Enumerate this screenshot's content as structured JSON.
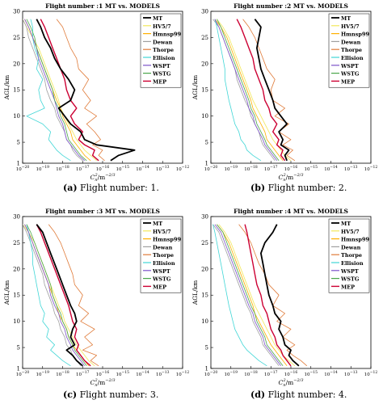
{
  "figure": {
    "captions": [
      {
        "tag": "(a)",
        "text": "Flight number: 1."
      },
      {
        "tag": "(b)",
        "text": "Flight number: 2."
      },
      {
        "tag": "(c)",
        "text": "Flight number: 3."
      },
      {
        "tag": "(d)",
        "text": "Flight number: 4."
      }
    ]
  },
  "series_styles": [
    {
      "name": "MT",
      "color": "#000000",
      "width": 1.8
    },
    {
      "name": "HV5/7",
      "color": "#f2e85a",
      "width": 0.8
    },
    {
      "name": "Hmnsp99",
      "color": "#ffb000",
      "width": 0.8
    },
    {
      "name": "Dewan",
      "color": "#a0a0a0",
      "width": 0.8
    },
    {
      "name": "Thorpe",
      "color": "#e07b39",
      "width": 0.8
    },
    {
      "name": "Ellision",
      "color": "#3fd6d6",
      "width": 0.8
    },
    {
      "name": "WSPT",
      "color": "#7b52c9",
      "width": 0.8
    },
    {
      "name": "WSTG",
      "color": "#4aa64a",
      "width": 0.8
    },
    {
      "name": "MEP",
      "color": "#cc0033",
      "width": 1.4
    }
  ],
  "chart_data": [
    {
      "type": "line",
      "title": "Flight number :1  MT vs. MODELS",
      "xlabel": "C_n^2/m^-2/3",
      "ylabel": "AGL/km",
      "x_scale": "log",
      "xlim": [
        1e-20,
        1e-12
      ],
      "ylim": [
        1,
        30
      ],
      "x_ticks": [
        "10^-20",
        "10^-19",
        "10^-18",
        "10^-17",
        "10^-16",
        "10^-15",
        "10^-14",
        "10^-13",
        "10^-12"
      ],
      "y_ticks": [
        1,
        5,
        10,
        15,
        20,
        25,
        30
      ],
      "legend_position": "top-right",
      "y": [
        1.5,
        2.5,
        3.5,
        4.5,
        5.5,
        7,
        8.5,
        10,
        11.5,
        13,
        15,
        17,
        19,
        21,
        23,
        25,
        27,
        28.5
      ],
      "series": [
        {
          "name": "MT",
          "x_exp": [
            -15.6,
            -15.2,
            -14.4,
            -16.3,
            -16.9,
            -17.1,
            -17.6,
            -17.9,
            -18.2,
            -17.6,
            -17.4,
            -17.7,
            -18.1,
            -18.4,
            -18.6,
            -18.9,
            -19.1,
            -19.3
          ]
        },
        {
          "name": "HV5/7",
          "x_exp": [
            -16.3,
            -16.6,
            -16.9,
            -17.1,
            -17.3,
            -17.5,
            -17.7,
            -17.9,
            -18.1,
            -18.2,
            -18.4,
            -18.6,
            -18.8,
            -19.0,
            -19.2,
            -19.5,
            -19.8,
            -20.0
          ]
        },
        {
          "name": "Hmnsp99",
          "x_exp": [
            -16.6,
            -16.9,
            -17.1,
            -17.3,
            -17.5,
            -17.6,
            -17.8,
            -18.0,
            -18.1,
            -18.3,
            -18.5,
            -18.7,
            -18.9,
            -19.1,
            -19.3,
            -19.5,
            -19.7,
            -19.9
          ]
        },
        {
          "name": "Dewan",
          "x_exp": [
            -17.0,
            -17.3,
            -17.5,
            -17.6,
            -17.8,
            -17.9,
            -18.1,
            -18.3,
            -18.4,
            -18.6,
            -18.8,
            -18.9,
            -19.1,
            -19.3,
            -19.5,
            -19.7,
            -19.8,
            -20.0
          ]
        },
        {
          "name": "Thorpe",
          "x_exp": [
            -15.9,
            -16.2,
            -16.0,
            -16.5,
            -16.1,
            -16.4,
            -16.8,
            -16.3,
            -16.9,
            -16.6,
            -17.0,
            -16.7,
            -17.2,
            -17.3,
            -17.6,
            -17.8,
            -18.0,
            -18.3
          ]
        },
        {
          "name": "Ellision",
          "x_exp": [
            -17.6,
            -18.0,
            -18.3,
            -18.5,
            -18.7,
            -18.6,
            -19.0,
            -19.8,
            -18.9,
            -19.1,
            -19.2,
            -19.0,
            -19.3,
            -19.2,
            -19.4,
            -19.5,
            -19.5,
            -19.6
          ]
        },
        {
          "name": "WSPT",
          "x_exp": [
            -16.9,
            -17.2,
            -17.4,
            -17.6,
            -17.8,
            -17.9,
            -18.0,
            -18.2,
            -18.3,
            -18.4,
            -18.6,
            -18.8,
            -19.0,
            -19.2,
            -19.3,
            -19.5,
            -19.7,
            -19.9
          ]
        },
        {
          "name": "WSTG",
          "x_exp": [
            -16.8,
            -17.1,
            -17.3,
            -17.5,
            -17.7,
            -17.8,
            -17.9,
            -18.1,
            -18.2,
            -18.4,
            -18.5,
            -18.7,
            -18.9,
            -19.1,
            -19.3,
            -19.4,
            -19.6,
            -19.8
          ]
        },
        {
          "name": "MEP",
          "x_exp": [
            -16.2,
            -16.5,
            -16.4,
            -16.9,
            -17.2,
            -17.0,
            -17.4,
            -17.6,
            -17.3,
            -17.6,
            -17.8,
            -17.9,
            -18.1,
            -18.3,
            -18.5,
            -18.7,
            -18.9,
            -19.1
          ]
        }
      ]
    },
    {
      "type": "line",
      "title": "Flight number :2  MT vs. MODELS",
      "xlabel": "C_n^2/m^-2/3",
      "ylabel": "AGL/km",
      "x_scale": "log",
      "xlim": [
        1e-20,
        1e-12
      ],
      "ylim": [
        1,
        30
      ],
      "x_ticks": [
        "10^-20",
        "10^-19",
        "10^-18",
        "10^-17",
        "10^-16",
        "10^-15",
        "10^-14",
        "10^-13",
        "10^-12"
      ],
      "y_ticks": [
        1,
        5,
        10,
        15,
        20,
        25,
        30
      ],
      "legend_position": "top-right",
      "y": [
        1.5,
        2.5,
        3.5,
        4.5,
        5.5,
        7,
        8.5,
        10,
        11.5,
        13,
        15,
        17,
        19,
        21,
        23,
        25,
        27,
        28.5
      ],
      "series": [
        {
          "name": "MT",
          "x_exp": [
            -16.2,
            -16.3,
            -16.1,
            -16.5,
            -16.4,
            -16.6,
            -16.2,
            -16.5,
            -16.8,
            -16.9,
            -17.1,
            -17.3,
            -17.5,
            -17.6,
            -17.7,
            -17.6,
            -17.5,
            -17.8
          ]
        },
        {
          "name": "HV5/7",
          "x_exp": [
            -16.0,
            -16.3,
            -16.5,
            -16.7,
            -16.9,
            -17.1,
            -17.3,
            -17.5,
            -17.7,
            -17.9,
            -18.1,
            -18.3,
            -18.5,
            -18.7,
            -18.9,
            -19.1,
            -19.4,
            -19.7
          ]
        },
        {
          "name": "Hmnsp99",
          "x_exp": [
            -16.4,
            -16.6,
            -16.8,
            -17.0,
            -17.2,
            -17.3,
            -17.5,
            -17.7,
            -17.9,
            -18.0,
            -18.2,
            -18.4,
            -18.6,
            -18.8,
            -19.0,
            -19.2,
            -19.5,
            -19.8
          ]
        },
        {
          "name": "Dewan",
          "x_exp": [
            -16.8,
            -17.0,
            -17.2,
            -17.4,
            -17.5,
            -17.6,
            -17.8,
            -18.0,
            -18.1,
            -18.3,
            -18.5,
            -18.7,
            -18.8,
            -19.0,
            -19.2,
            -19.4,
            -19.6,
            -19.9
          ]
        },
        {
          "name": "Thorpe",
          "x_exp": [
            -15.8,
            -16.2,
            -15.9,
            -16.4,
            -16.0,
            -16.6,
            -16.1,
            -16.8,
            -16.3,
            -16.9,
            -17.0,
            -16.8,
            -17.2,
            -17.4,
            -17.6,
            -17.8,
            -18.1,
            -18.4
          ]
        },
        {
          "name": "Ellision",
          "x_exp": [
            -17.5,
            -17.9,
            -18.2,
            -18.3,
            -18.5,
            -18.6,
            -18.8,
            -18.9,
            -19.0,
            -19.1,
            -19.2,
            -19.3,
            -19.3,
            -19.4,
            -19.5,
            -19.6,
            -19.7,
            -19.8
          ]
        },
        {
          "name": "WSPT",
          "x_exp": [
            -16.7,
            -16.9,
            -17.1,
            -17.3,
            -17.4,
            -17.6,
            -17.8,
            -17.9,
            -18.1,
            -18.2,
            -18.4,
            -18.6,
            -18.8,
            -19.0,
            -19.2,
            -19.4,
            -19.6,
            -19.8
          ]
        },
        {
          "name": "WSTG",
          "x_exp": [
            -16.6,
            -16.8,
            -17.0,
            -17.2,
            -17.3,
            -17.5,
            -17.7,
            -17.8,
            -18.0,
            -18.1,
            -18.3,
            -18.5,
            -18.7,
            -18.9,
            -19.1,
            -19.3,
            -19.5,
            -19.7
          ]
        },
        {
          "name": "MEP",
          "x_exp": [
            -16.3,
            -16.5,
            -16.4,
            -16.7,
            -16.6,
            -16.9,
            -16.7,
            -17.0,
            -17.1,
            -17.3,
            -17.4,
            -17.6,
            -17.8,
            -17.9,
            -18.1,
            -18.3,
            -18.5,
            -18.7
          ]
        }
      ]
    },
    {
      "type": "line",
      "title": "Flight number :3  MT vs. MODELS",
      "xlabel": "C_n^2/m^-2/3",
      "ylabel": "AGL/km",
      "x_scale": "log",
      "xlim": [
        1e-20,
        1e-12
      ],
      "ylim": [
        1,
        30
      ],
      "x_ticks": [
        "10^-20",
        "10^-19",
        "10^-18",
        "10^-17",
        "10^-16",
        "10^-15",
        "10^-14",
        "10^-13",
        "10^-12"
      ],
      "y_ticks": [
        1,
        5,
        10,
        15,
        20,
        25,
        30
      ],
      "legend_position": "top-right",
      "y": [
        1.5,
        2.5,
        3.5,
        4.5,
        5.5,
        7,
        8.5,
        10,
        11.5,
        13,
        15,
        17,
        19,
        21,
        23,
        25,
        27,
        28.5
      ],
      "series": [
        {
          "name": "MT",
          "x_exp": [
            -17.0,
            -17.3,
            -17.5,
            -17.8,
            -17.4,
            -17.6,
            -17.5,
            -17.3,
            -17.4,
            -17.6,
            -17.8,
            -18.0,
            -18.2,
            -18.4,
            -18.6,
            -18.8,
            -19.0,
            -19.3
          ]
        },
        {
          "name": "HV5/7",
          "x_exp": [
            -16.4,
            -16.7,
            -16.9,
            -17.1,
            -17.3,
            -17.5,
            -17.7,
            -17.9,
            -18.0,
            -18.2,
            -18.4,
            -18.6,
            -18.8,
            -19.0,
            -19.2,
            -19.4,
            -19.7,
            -20.0
          ]
        },
        {
          "name": "Hmnsp99",
          "x_exp": [
            -16.7,
            -16.9,
            -17.1,
            -17.3,
            -17.5,
            -17.7,
            -17.8,
            -18.0,
            -18.2,
            -18.3,
            -18.5,
            -18.7,
            -18.9,
            -19.1,
            -19.3,
            -19.5,
            -19.7,
            -19.9
          ]
        },
        {
          "name": "Dewan",
          "x_exp": [
            -17.1,
            -17.3,
            -17.5,
            -17.6,
            -17.8,
            -17.9,
            -18.1,
            -18.2,
            -18.4,
            -18.5,
            -18.7,
            -18.9,
            -19.0,
            -19.2,
            -19.4,
            -19.6,
            -19.8,
            -20.0
          ]
        },
        {
          "name": "Thorpe",
          "x_exp": [
            -16.2,
            -16.6,
            -16.3,
            -17.0,
            -16.5,
            -16.9,
            -16.4,
            -17.1,
            -16.7,
            -17.2,
            -17.0,
            -17.4,
            -17.5,
            -17.7,
            -17.9,
            -18.1,
            -18.4,
            -18.7
          ]
        },
        {
          "name": "Ellision",
          "x_exp": [
            -17.6,
            -18.0,
            -18.3,
            -18.6,
            -18.4,
            -18.8,
            -18.7,
            -19.0,
            -18.9,
            -19.1,
            -19.2,
            -19.3,
            -19.4,
            -19.5,
            -19.5,
            -19.6,
            -19.7,
            -19.8
          ]
        },
        {
          "name": "WSPT",
          "x_exp": [
            -16.9,
            -17.1,
            -17.3,
            -17.5,
            -17.6,
            -17.8,
            -17.9,
            -18.1,
            -18.2,
            -18.4,
            -18.6,
            -18.7,
            -18.9,
            -19.1,
            -19.3,
            -19.5,
            -19.7,
            -19.9
          ]
        },
        {
          "name": "WSTG",
          "x_exp": [
            -16.8,
            -17.0,
            -17.2,
            -17.4,
            -17.5,
            -17.7,
            -17.8,
            -18.0,
            -18.1,
            -18.3,
            -18.5,
            -18.6,
            -18.8,
            -19.0,
            -19.2,
            -19.4,
            -19.6,
            -19.8
          ]
        },
        {
          "name": "MEP",
          "x_exp": [
            -16.6,
            -16.9,
            -17.1,
            -17.3,
            -17.2,
            -17.4,
            -17.3,
            -17.5,
            -17.6,
            -17.7,
            -17.9,
            -18.1,
            -18.3,
            -18.5,
            -18.7,
            -18.9,
            -19.1,
            -19.3
          ]
        }
      ]
    },
    {
      "type": "line",
      "title": "Flight number :4  MT vs. MODELS",
      "xlabel": "C_n^2/m^-2/3",
      "ylabel": "AGL/km",
      "x_scale": "log",
      "xlim": [
        1e-20,
        1e-12
      ],
      "ylim": [
        1,
        30
      ],
      "x_ticks": [
        "10^-20",
        "10^-19",
        "10^-18",
        "10^-17",
        "10^-16",
        "10^-15",
        "10^-14",
        "10^-13",
        "10^-12"
      ],
      "y_ticks": [
        1,
        5,
        10,
        15,
        20,
        25,
        30
      ],
      "legend_position": "top-right",
      "y": [
        1.5,
        2.5,
        3.5,
        4.5,
        5.5,
        7,
        8.5,
        10,
        11.5,
        13,
        15,
        17,
        19,
        21,
        23,
        25,
        27,
        28.5
      ],
      "series": [
        {
          "name": "MT",
          "x_exp": [
            -15.6,
            -15.9,
            -16.1,
            -16.0,
            -16.3,
            -16.4,
            -16.6,
            -16.5,
            -16.8,
            -16.9,
            -17.1,
            -17.2,
            -17.3,
            -17.4,
            -17.5,
            -17.3,
            -16.9,
            -16.7
          ]
        },
        {
          "name": "HV5/7",
          "x_exp": [
            -15.8,
            -16.1,
            -16.4,
            -16.6,
            -16.8,
            -17.0,
            -17.2,
            -17.4,
            -17.6,
            -17.8,
            -18.0,
            -18.2,
            -18.4,
            -18.6,
            -18.8,
            -19.0,
            -19.3,
            -19.6
          ]
        },
        {
          "name": "Hmnsp99",
          "x_exp": [
            -16.2,
            -16.4,
            -16.6,
            -16.8,
            -17.0,
            -17.2,
            -17.4,
            -17.6,
            -17.8,
            -17.9,
            -18.1,
            -18.3,
            -18.5,
            -18.7,
            -18.9,
            -19.1,
            -19.4,
            -19.7
          ]
        },
        {
          "name": "Dewan",
          "x_exp": [
            -16.6,
            -16.8,
            -17.0,
            -17.2,
            -17.4,
            -17.5,
            -17.7,
            -17.9,
            -18.0,
            -18.2,
            -18.4,
            -18.6,
            -18.8,
            -19.0,
            -19.2,
            -19.4,
            -19.6,
            -19.9
          ]
        },
        {
          "name": "Thorpe",
          "x_exp": [
            -15.2,
            -15.5,
            -15.9,
            -16.2,
            -15.8,
            -16.4,
            -16.0,
            -16.7,
            -16.3,
            -16.9,
            -16.6,
            -17.1,
            -17.3,
            -17.6,
            -17.8,
            -18.0,
            -18.3,
            -18.6
          ]
        },
        {
          "name": "Ellision",
          "x_exp": [
            -17.2,
            -17.6,
            -17.9,
            -18.2,
            -18.4,
            -18.6,
            -18.8,
            -18.9,
            -19.0,
            -19.1,
            -19.2,
            -19.3,
            -19.4,
            -19.5,
            -19.6,
            -19.7,
            -19.8,
            -19.9
          ]
        },
        {
          "name": "WSPT",
          "x_exp": [
            -16.5,
            -16.7,
            -16.9,
            -17.1,
            -17.3,
            -17.4,
            -17.6,
            -17.8,
            -17.9,
            -18.1,
            -18.3,
            -18.5,
            -18.7,
            -18.9,
            -19.1,
            -19.3,
            -19.5,
            -19.8
          ]
        },
        {
          "name": "WSTG",
          "x_exp": [
            -16.4,
            -16.6,
            -16.8,
            -17.0,
            -17.2,
            -17.3,
            -17.5,
            -17.7,
            -17.8,
            -18.0,
            -18.2,
            -18.4,
            -18.6,
            -18.8,
            -19.0,
            -19.2,
            -19.4,
            -19.7
          ]
        },
        {
          "name": "MEP",
          "x_exp": [
            -16.0,
            -16.2,
            -16.4,
            -16.5,
            -16.7,
            -16.8,
            -17.0,
            -17.1,
            -17.2,
            -17.4,
            -17.5,
            -17.7,
            -17.8,
            -17.9,
            -18.0,
            -18.1,
            -18.2,
            -18.3
          ]
        }
      ]
    }
  ]
}
